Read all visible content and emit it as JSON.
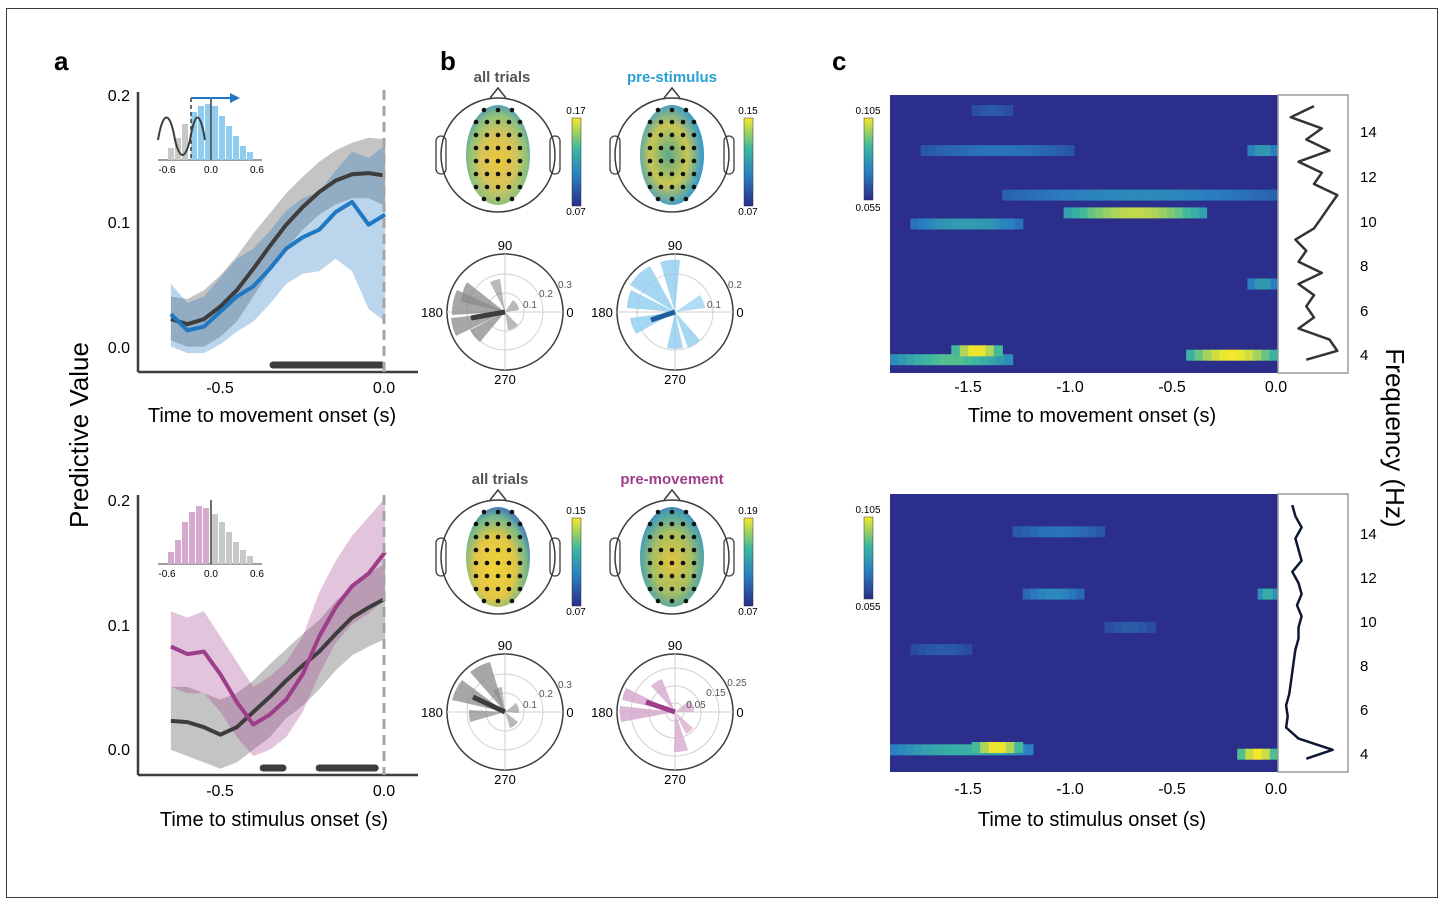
{
  "panels": {
    "a": "a",
    "b": "b",
    "c": "c"
  },
  "panel_a": {
    "ylabel": "Predictive Value",
    "top": {
      "xlabel": "Time to movement onset (s)",
      "x_ticks": [
        "-0.5",
        "0.0"
      ],
      "y_ticks": [
        "0.0",
        "0.1",
        "0.2"
      ],
      "inset_ticks": [
        "-0.6",
        "0.0",
        "0.6"
      ]
    },
    "bottom": {
      "xlabel": "Time to stimulus onset (s)",
      "x_ticks": [
        "-0.5",
        "0.0"
      ],
      "y_ticks": [
        "0.0",
        "0.1",
        "0.2"
      ],
      "inset_ticks": [
        "-0.6",
        "0.0",
        "0.6"
      ]
    }
  },
  "panel_b": {
    "top": {
      "left_title": "all trials",
      "right_title": "pre-stimulus",
      "left_cbar": [
        "0.17",
        "0.07"
      ],
      "right_cbar": [
        "0.15",
        "0.07"
      ],
      "left_polar": {
        "angles": [
          "90",
          "180",
          "270",
          "0"
        ],
        "radii": [
          "0.1",
          "0.2",
          "0.3"
        ]
      },
      "right_polar": {
        "angles": [
          "90",
          "180",
          "270",
          "0"
        ],
        "radii": [
          "0.1",
          "0.2"
        ]
      }
    },
    "bottom": {
      "left_title": "all trials",
      "right_title": "pre-movement",
      "left_cbar": [
        "0.15",
        "0.07"
      ],
      "right_cbar": [
        "0.19",
        "0.07"
      ],
      "left_polar": {
        "angles": [
          "90",
          "180",
          "270",
          "0"
        ],
        "radii": [
          "0.1",
          "0.2",
          "0.3"
        ]
      },
      "right_polar": {
        "angles": [
          "90",
          "180",
          "270",
          "0"
        ],
        "radii": [
          "0.05",
          "0.15",
          "0.25"
        ]
      }
    }
  },
  "panel_c": {
    "ylabel": "Frequency (Hz)",
    "top": {
      "xlabel": "Time to movement onset (s)",
      "x_ticks": [
        "-1.5",
        "-1.0",
        "-0.5",
        "0.0"
      ],
      "y_ticks": [
        "14",
        "12",
        "10",
        "8",
        "6",
        "4"
      ],
      "cbar": [
        "0.105",
        "0.055"
      ]
    },
    "bottom": {
      "xlabel": "Time to stimulus onset (s)",
      "x_ticks": [
        "-1.5",
        "-1.0",
        "-0.5",
        "0.0"
      ],
      "y_ticks": [
        "14",
        "12",
        "10",
        "8",
        "6",
        "4"
      ],
      "cbar": [
        "0.105",
        "0.055"
      ]
    }
  },
  "colors": {
    "blue": "#1f78c1",
    "light_blue": "#8fcdf0",
    "gray": "#3d3d3d",
    "purple": "#9e3d8a",
    "light_purple": "#d6a9cf",
    "pre_stimulus_title": "#2a9fd6",
    "pre_movement_title": "#9e3d8a",
    "heatmap_bg": "#2b2e8a"
  },
  "chart_data": [
    {
      "type": "line",
      "xlabel": "Time to movement onset (s)",
      "ylabel": "Predictive Value",
      "xlim": [
        -0.75,
        0.1
      ],
      "ylim": [
        -0.02,
        0.2
      ],
      "series": [
        {
          "color": "#3d3d3d",
          "x": [
            -0.65,
            -0.6,
            -0.55,
            -0.5,
            -0.45,
            -0.4,
            -0.35,
            -0.3,
            -0.25,
            -0.2,
            -0.15,
            -0.1,
            -0.05,
            0.0
          ],
          "y": [
            0.022,
            0.018,
            0.022,
            0.032,
            0.045,
            0.062,
            0.08,
            0.097,
            0.111,
            0.123,
            0.132,
            0.137,
            0.138,
            0.136
          ],
          "lower": [
            0.005,
            0.0,
            0.0,
            0.008,
            0.02,
            0.04,
            0.06,
            0.078,
            0.093,
            0.105,
            0.113,
            0.118,
            0.118,
            0.112
          ],
          "upper": [
            0.04,
            0.038,
            0.045,
            0.057,
            0.072,
            0.09,
            0.106,
            0.122,
            0.135,
            0.147,
            0.156,
            0.162,
            0.166,
            0.165
          ]
        },
        {
          "color": "#1f78c1",
          "x": [
            -0.65,
            -0.6,
            -0.55,
            -0.5,
            -0.45,
            -0.4,
            -0.35,
            -0.3,
            -0.25,
            -0.2,
            -0.15,
            -0.1,
            -0.05,
            0.0
          ],
          "y": [
            0.026,
            0.013,
            0.016,
            0.028,
            0.04,
            0.048,
            0.062,
            0.078,
            0.087,
            0.093,
            0.107,
            0.115,
            0.097,
            0.105
          ],
          "lower": [
            0.0,
            -0.005,
            -0.005,
            0.002,
            0.012,
            0.02,
            0.034,
            0.05,
            0.058,
            0.06,
            0.07,
            0.06,
            0.03,
            0.02
          ],
          "upper": [
            0.05,
            0.035,
            0.04,
            0.055,
            0.07,
            0.078,
            0.092,
            0.108,
            0.118,
            0.123,
            0.14,
            0.155,
            0.15,
            0.16
          ]
        }
      ],
      "significance": [
        [
          -0.34,
          -0.01
        ]
      ]
    },
    {
      "type": "line",
      "xlabel": "Time to stimulus onset (s)",
      "ylabel": "Predictive Value",
      "xlim": [
        -0.75,
        0.1
      ],
      "ylim": [
        -0.02,
        0.2
      ],
      "series": [
        {
          "color": "#3d3d3d",
          "x": [
            -0.65,
            -0.6,
            -0.55,
            -0.5,
            -0.45,
            -0.4,
            -0.35,
            -0.3,
            -0.25,
            -0.2,
            -0.15,
            -0.1,
            -0.05,
            0.0
          ],
          "y": [
            0.023,
            0.022,
            0.018,
            0.012,
            0.018,
            0.03,
            0.042,
            0.055,
            0.067,
            0.078,
            0.092,
            0.105,
            0.113,
            0.12
          ],
          "lower": [
            0.0,
            -0.005,
            -0.01,
            -0.015,
            -0.01,
            0.0,
            0.01,
            0.025,
            0.035,
            0.048,
            0.063,
            0.075,
            0.082,
            0.088
          ],
          "upper": [
            0.05,
            0.05,
            0.045,
            0.04,
            0.045,
            0.055,
            0.068,
            0.08,
            0.092,
            0.103,
            0.118,
            0.13,
            0.14,
            0.148
          ]
        },
        {
          "color": "#9e3d8a",
          "x": [
            -0.65,
            -0.6,
            -0.55,
            -0.5,
            -0.45,
            -0.4,
            -0.35,
            -0.3,
            -0.25,
            -0.2,
            -0.15,
            -0.1,
            -0.05,
            0.0
          ],
          "y": [
            0.082,
            0.076,
            0.078,
            0.06,
            0.038,
            0.02,
            0.028,
            0.04,
            0.06,
            0.09,
            0.113,
            0.13,
            0.14,
            0.157
          ],
          "lower": [
            0.05,
            0.045,
            0.045,
            0.03,
            0.01,
            -0.005,
            0.0,
            0.01,
            0.03,
            0.06,
            0.085,
            0.1,
            0.108,
            0.12
          ],
          "upper": [
            0.11,
            0.105,
            0.11,
            0.09,
            0.07,
            0.05,
            0.058,
            0.07,
            0.09,
            0.125,
            0.15,
            0.17,
            0.185,
            0.2
          ]
        }
      ],
      "significance": [
        [
          -0.37,
          -0.31
        ],
        [
          -0.2,
          -0.03
        ]
      ]
    },
    {
      "type": "heatmap",
      "xlabel": "Time to movement onset (s)",
      "ylabel": "Frequency (Hz)",
      "xlim": [
        -1.9,
        0.0
      ],
      "ylim": [
        3,
        15.5
      ],
      "blobs": [
        {
          "t0": -1.9,
          "t1": -1.3,
          "f": 3.6,
          "v": 0.09
        },
        {
          "t0": -1.6,
          "t1": -1.35,
          "f": 4.0,
          "v": 0.105
        },
        {
          "t0": -0.45,
          "t1": 0.0,
          "f": 3.8,
          "v": 0.105
        },
        {
          "t0": -1.8,
          "t1": -1.25,
          "f": 9.7,
          "v": 0.08
        },
        {
          "t0": -1.05,
          "t1": -0.35,
          "f": 10.2,
          "v": 0.1
        },
        {
          "t0": -1.35,
          "t1": 0.0,
          "f": 11.0,
          "v": 0.075
        },
        {
          "t0": -1.75,
          "t1": -1.0,
          "f": 13.0,
          "v": 0.07
        },
        {
          "t0": -0.15,
          "t1": 0.0,
          "f": 13.0,
          "v": 0.08
        },
        {
          "t0": -0.15,
          "t1": 0.0,
          "f": 7.0,
          "v": 0.08
        },
        {
          "t0": -1.5,
          "t1": -1.3,
          "f": 14.8,
          "v": 0.065
        }
      ],
      "marginal": {
        "f": [
          3.6,
          4,
          4.5,
          5,
          5.5,
          6,
          6.5,
          7,
          7.5,
          8,
          8.5,
          9,
          9.5,
          10,
          10.5,
          11,
          11.5,
          12,
          12.5,
          13,
          13.5,
          14,
          14.5,
          15
        ],
        "v": [
          0.15,
          0.35,
          0.3,
          0.1,
          0.2,
          0.15,
          0.2,
          0.1,
          0.25,
          0.1,
          0.15,
          0.08,
          0.2,
          0.25,
          0.3,
          0.35,
          0.2,
          0.25,
          0.1,
          0.3,
          0.15,
          0.25,
          0.05,
          0.2
        ]
      }
    },
    {
      "type": "heatmap",
      "xlabel": "Time to stimulus onset (s)",
      "ylabel": "Frequency (Hz)",
      "xlim": [
        -1.9,
        0.0
      ],
      "ylim": [
        3,
        15.5
      ],
      "blobs": [
        {
          "t0": -1.9,
          "t1": -1.2,
          "f": 4.0,
          "v": 0.085
        },
        {
          "t0": -1.5,
          "t1": -1.25,
          "f": 4.1,
          "v": 0.105
        },
        {
          "t0": -0.2,
          "t1": 0.0,
          "f": 3.8,
          "v": 0.105
        },
        {
          "t0": -1.25,
          "t1": -0.95,
          "f": 11.0,
          "v": 0.075
        },
        {
          "t0": -1.3,
          "t1": -0.85,
          "f": 13.8,
          "v": 0.07
        },
        {
          "t0": -0.1,
          "t1": 0.0,
          "f": 11.0,
          "v": 0.085
        },
        {
          "t0": -1.8,
          "t1": -1.5,
          "f": 8.5,
          "v": 0.065
        },
        {
          "t0": -0.85,
          "t1": -0.6,
          "f": 9.5,
          "v": 0.065
        }
      ],
      "marginal": {
        "f": [
          3.6,
          4,
          4.5,
          5,
          5.5,
          6,
          6.5,
          7,
          7.5,
          8,
          8.5,
          9,
          9.5,
          10,
          10.5,
          11,
          11.5,
          12,
          12.5,
          13,
          13.5,
          14,
          14.5,
          15
        ],
        "v": [
          0.15,
          0.32,
          0.1,
          0.02,
          0.03,
          0.02,
          0.04,
          0.05,
          0.06,
          0.07,
          0.08,
          0.1,
          0.1,
          0.12,
          0.09,
          0.12,
          0.1,
          0.06,
          0.12,
          0.1,
          0.08,
          0.12,
          0.08,
          0.06
        ]
      }
    }
  ]
}
